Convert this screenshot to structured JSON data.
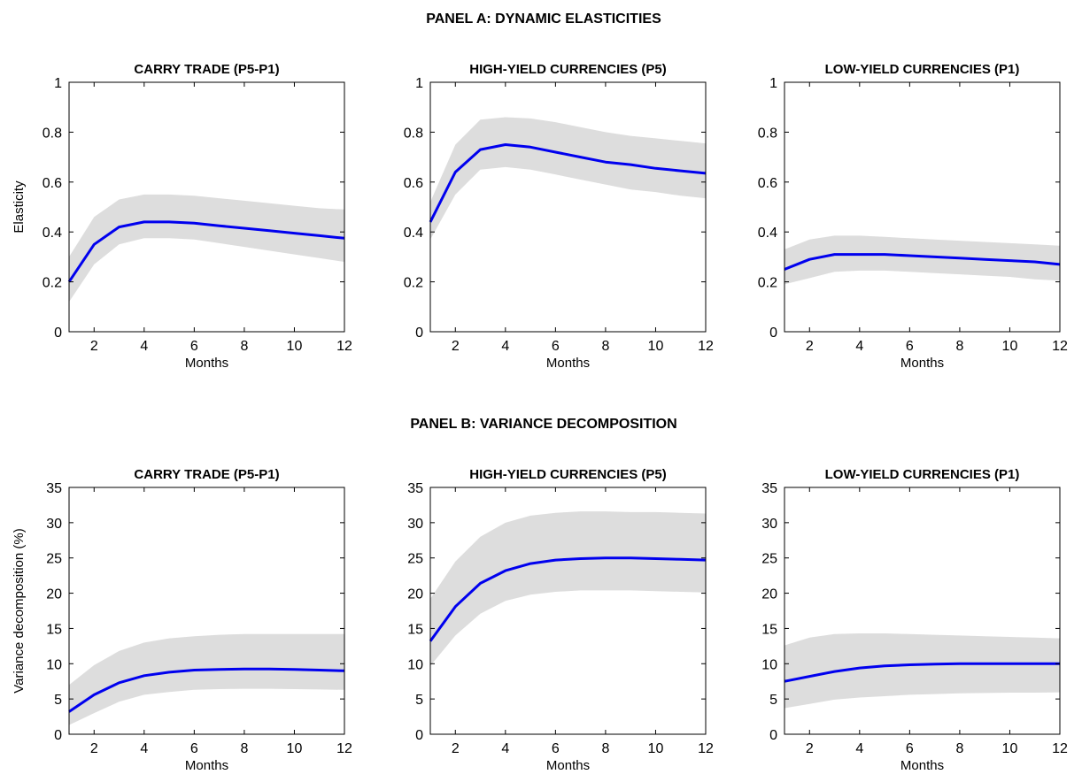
{
  "panels": [
    {
      "title": "PANEL A: DYNAMIC ELASTICITIES"
    },
    {
      "title": "PANEL B: VARIANCE DECOMPOSITION"
    }
  ],
  "chart_data": [
    {
      "type": "line",
      "panel": "A",
      "title": "CARRY TRADE (P5-P1)",
      "xlabel": "Months",
      "ylabel": "Elasticity",
      "xlim": [
        1,
        12
      ],
      "ylim": [
        0,
        1
      ],
      "xticks": [
        2,
        4,
        6,
        8,
        10,
        12
      ],
      "yticks": [
        0,
        0.2,
        0.4,
        0.6,
        0.8,
        1
      ],
      "x": [
        1,
        2,
        3,
        4,
        5,
        6,
        7,
        8,
        9,
        10,
        11,
        12
      ],
      "series": [
        {
          "color": "#0000ee",
          "values": [
            0.2,
            0.35,
            0.42,
            0.44,
            0.44,
            0.435,
            0.425,
            0.415,
            0.405,
            0.395,
            0.385,
            0.375
          ],
          "lower": [
            0.12,
            0.27,
            0.35,
            0.375,
            0.375,
            0.37,
            0.355,
            0.34,
            0.325,
            0.31,
            0.295,
            0.28
          ],
          "upper": [
            0.3,
            0.46,
            0.53,
            0.55,
            0.55,
            0.545,
            0.535,
            0.525,
            0.515,
            0.505,
            0.495,
            0.49
          ]
        }
      ],
      "band_color": "#dddddd",
      "grid": false
    },
    {
      "type": "line",
      "panel": "A",
      "title": "HIGH-YIELD CURRENCIES (P5)",
      "xlabel": "Months",
      "ylabel": "",
      "xlim": [
        1,
        12
      ],
      "ylim": [
        0,
        1
      ],
      "xticks": [
        2,
        4,
        6,
        8,
        10,
        12
      ],
      "yticks": [
        0,
        0.2,
        0.4,
        0.6,
        0.8,
        1
      ],
      "x": [
        1,
        2,
        3,
        4,
        5,
        6,
        7,
        8,
        9,
        10,
        11,
        12
      ],
      "series": [
        {
          "color": "#0000ee",
          "values": [
            0.44,
            0.64,
            0.73,
            0.75,
            0.74,
            0.72,
            0.7,
            0.68,
            0.67,
            0.655,
            0.645,
            0.635
          ],
          "lower": [
            0.37,
            0.55,
            0.65,
            0.66,
            0.65,
            0.63,
            0.61,
            0.59,
            0.57,
            0.56,
            0.545,
            0.535
          ],
          "upper": [
            0.52,
            0.75,
            0.85,
            0.86,
            0.855,
            0.84,
            0.82,
            0.8,
            0.785,
            0.775,
            0.765,
            0.755
          ]
        }
      ],
      "band_color": "#dddddd",
      "grid": false
    },
    {
      "type": "line",
      "panel": "A",
      "title": "LOW-YIELD CURRENCIES (P1)",
      "xlabel": "Months",
      "ylabel": "",
      "xlim": [
        1,
        12
      ],
      "ylim": [
        0,
        1
      ],
      "xticks": [
        2,
        4,
        6,
        8,
        10,
        12
      ],
      "yticks": [
        0,
        0.2,
        0.4,
        0.6,
        0.8,
        1
      ],
      "x": [
        1,
        2,
        3,
        4,
        5,
        6,
        7,
        8,
        9,
        10,
        11,
        12
      ],
      "series": [
        {
          "color": "#0000ee",
          "values": [
            0.25,
            0.29,
            0.31,
            0.31,
            0.31,
            0.305,
            0.3,
            0.295,
            0.29,
            0.285,
            0.28,
            0.27
          ],
          "lower": [
            0.19,
            0.215,
            0.24,
            0.245,
            0.245,
            0.24,
            0.235,
            0.23,
            0.225,
            0.22,
            0.21,
            0.205
          ],
          "upper": [
            0.33,
            0.37,
            0.385,
            0.385,
            0.38,
            0.375,
            0.37,
            0.365,
            0.36,
            0.355,
            0.35,
            0.345
          ]
        }
      ],
      "band_color": "#dddddd",
      "grid": false
    },
    {
      "type": "line",
      "panel": "B",
      "title": "CARRY TRADE (P5-P1)",
      "xlabel": "Months",
      "ylabel": "Variance decomposition (%)",
      "xlim": [
        1,
        12
      ],
      "ylim": [
        0,
        35
      ],
      "xticks": [
        2,
        4,
        6,
        8,
        10,
        12
      ],
      "yticks": [
        0,
        5,
        10,
        15,
        20,
        25,
        30,
        35
      ],
      "x": [
        1,
        2,
        3,
        4,
        5,
        6,
        7,
        8,
        9,
        10,
        11,
        12
      ],
      "series": [
        {
          "color": "#0000ee",
          "values": [
            3.2,
            5.6,
            7.3,
            8.3,
            8.8,
            9.1,
            9.2,
            9.25,
            9.25,
            9.2,
            9.1,
            9.0
          ],
          "lower": [
            1.3,
            3.0,
            4.6,
            5.6,
            6.0,
            6.3,
            6.4,
            6.45,
            6.45,
            6.4,
            6.35,
            6.3
          ],
          "upper": [
            7.0,
            9.8,
            11.8,
            13.0,
            13.6,
            13.9,
            14.1,
            14.2,
            14.2,
            14.2,
            14.2,
            14.2
          ]
        }
      ],
      "band_color": "#dddddd",
      "grid": false
    },
    {
      "type": "line",
      "panel": "B",
      "title": "HIGH-YIELD CURRENCIES (P5)",
      "xlabel": "Months",
      "ylabel": "",
      "xlim": [
        1,
        12
      ],
      "ylim": [
        0,
        35
      ],
      "xticks": [
        2,
        4,
        6,
        8,
        10,
        12
      ],
      "yticks": [
        0,
        5,
        10,
        15,
        20,
        25,
        30,
        35
      ],
      "x": [
        1,
        2,
        3,
        4,
        5,
        6,
        7,
        8,
        9,
        10,
        11,
        12
      ],
      "series": [
        {
          "color": "#0000ee",
          "values": [
            13.2,
            18.1,
            21.4,
            23.2,
            24.2,
            24.7,
            24.9,
            25.0,
            25.0,
            24.9,
            24.8,
            24.7
          ],
          "lower": [
            9.7,
            14.0,
            17.1,
            18.9,
            19.8,
            20.2,
            20.4,
            20.4,
            20.4,
            20.3,
            20.2,
            20.1
          ],
          "upper": [
            19.2,
            24.5,
            28.0,
            30.0,
            31.0,
            31.4,
            31.6,
            31.6,
            31.5,
            31.5,
            31.4,
            31.3
          ]
        }
      ],
      "band_color": "#dddddd",
      "grid": false
    },
    {
      "type": "line",
      "panel": "B",
      "title": "LOW-YIELD CURRENCIES (P1)",
      "xlabel": "Months",
      "ylabel": "",
      "xlim": [
        1,
        12
      ],
      "ylim": [
        0,
        35
      ],
      "xticks": [
        2,
        4,
        6,
        8,
        10,
        12
      ],
      "yticks": [
        0,
        5,
        10,
        15,
        20,
        25,
        30,
        35
      ],
      "x": [
        1,
        2,
        3,
        4,
        5,
        6,
        7,
        8,
        9,
        10,
        11,
        12
      ],
      "series": [
        {
          "color": "#0000ee",
          "values": [
            7.5,
            8.2,
            8.9,
            9.4,
            9.7,
            9.85,
            9.95,
            10.0,
            10.0,
            10.0,
            10.0,
            10.0
          ],
          "lower": [
            3.7,
            4.3,
            4.9,
            5.2,
            5.4,
            5.6,
            5.7,
            5.8,
            5.85,
            5.9,
            5.9,
            5.95
          ],
          "upper": [
            12.6,
            13.7,
            14.2,
            14.3,
            14.3,
            14.2,
            14.1,
            14.0,
            13.9,
            13.8,
            13.7,
            13.6
          ]
        }
      ],
      "band_color": "#dddddd",
      "grid": false
    }
  ]
}
